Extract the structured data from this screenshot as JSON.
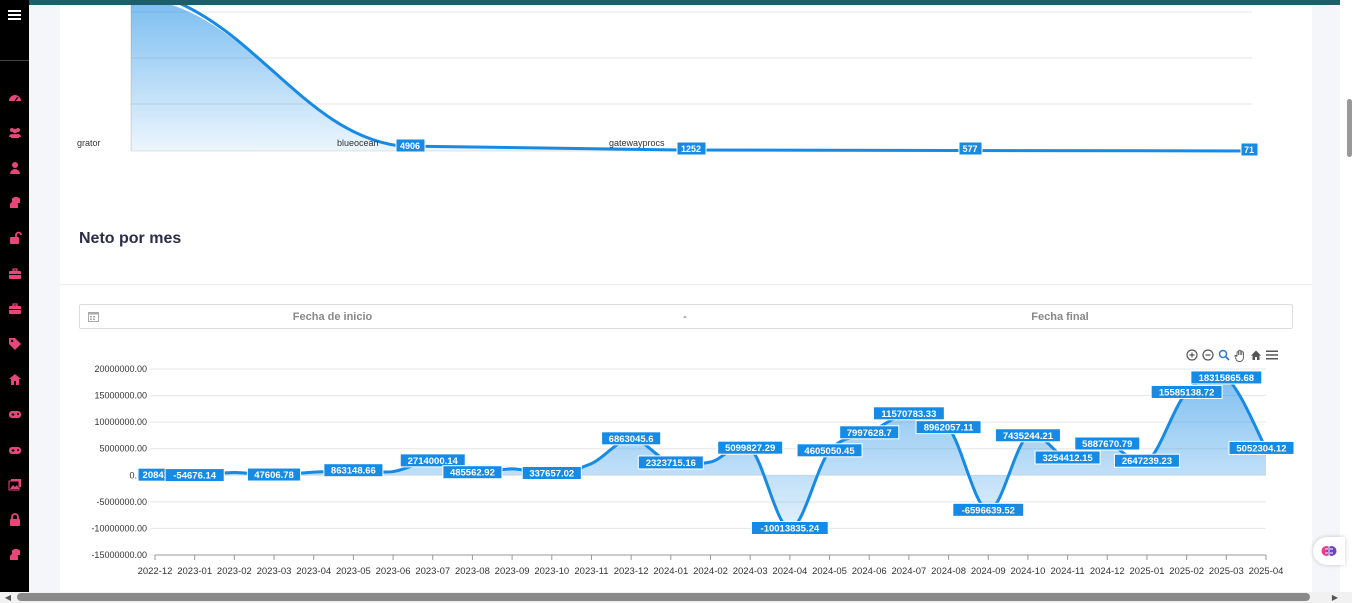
{
  "sidebar": {
    "icons": [
      "menu-icon",
      "dashboard-icon",
      "users-icon",
      "user-icon",
      "coins-icon",
      "unlock-icon",
      "briefcase-icon",
      "briefcase-icon",
      "tag-icon",
      "home-icon",
      "gamepad-icon",
      "gamepad-icon",
      "images-icon",
      "lock-icon",
      "coins-icon"
    ],
    "accent": "#e8457c"
  },
  "top_chart": {
    "category_labels": [
      "grator",
      "blueocean",
      "gatewayprocs"
    ],
    "data_labels": [
      "4906",
      "1252",
      "577",
      "71"
    ],
    "color": "#168be6"
  },
  "section": {
    "title": "Neto por mes"
  },
  "date_range": {
    "start_placeholder": "Fecha de inicio",
    "separator": "-",
    "end_placeholder": "Fecha final"
  },
  "toolbar": {
    "icons": [
      "zoom-in-icon",
      "zoom-out-icon",
      "selection-zoom-icon",
      "pan-icon",
      "reset-home-icon",
      "menu-icon"
    ]
  },
  "chart_data": {
    "type": "area",
    "title": "Neto por mes",
    "categories": [
      "2022-12",
      "2023-01",
      "2023-02",
      "2023-03",
      "2023-04",
      "2023-05",
      "2023-06",
      "2023-07",
      "2023-08",
      "2023-09",
      "2023-10",
      "2023-11",
      "2023-12",
      "2024-01",
      "2024-02",
      "2024-03",
      "2024-04",
      "2024-05",
      "2024-06",
      "2024-07",
      "2024-08",
      "2024-09",
      "2024-10",
      "2024-11",
      "2024-12",
      "2025-01",
      "2025-02",
      "2025-03",
      "2025-04"
    ],
    "values": [
      20841,
      -54676.14,
      520000,
      47606.78,
      600000,
      863148.66,
      700000,
      2714000.14,
      485562.92,
      1200000,
      337657.02,
      2200000,
      6863045.6,
      2323715.16,
      2500000,
      5099827.29,
      -10013835.24,
      4605050.45,
      7997628.7,
      11570783.33,
      8962057.11,
      -6596639.52,
      7435244.21,
      3254412.15,
      5887670.79,
      2647239.23,
      15585138.72,
      18315865.68,
      5052304.12
    ],
    "labels": [
      "20841",
      "-54676.14",
      "",
      "47606.78",
      "",
      "863148.66",
      "",
      "2714000.14",
      "485562.92",
      "",
      "337657.02",
      "",
      "6863045.6",
      "2323715.16",
      "",
      "5099827.29",
      "-10013835.24",
      "4605050.45",
      "7997628.7",
      "11570783.33",
      "8962057.11",
      "-6596639.52",
      "7435244.21",
      "3254412.15",
      "5887670.79",
      "2647239.23",
      "15585138.72",
      "18315865.68",
      "5052304.12"
    ],
    "y_ticks": [
      "20000000.00",
      "15000000.00",
      "10000000.00",
      "5000000.00",
      "0.00",
      "-5000000.00",
      "-10000000.00",
      "-15000000.00"
    ],
    "ylim": [
      -15000000,
      20000000
    ],
    "grid": true,
    "color": "#168be6"
  }
}
